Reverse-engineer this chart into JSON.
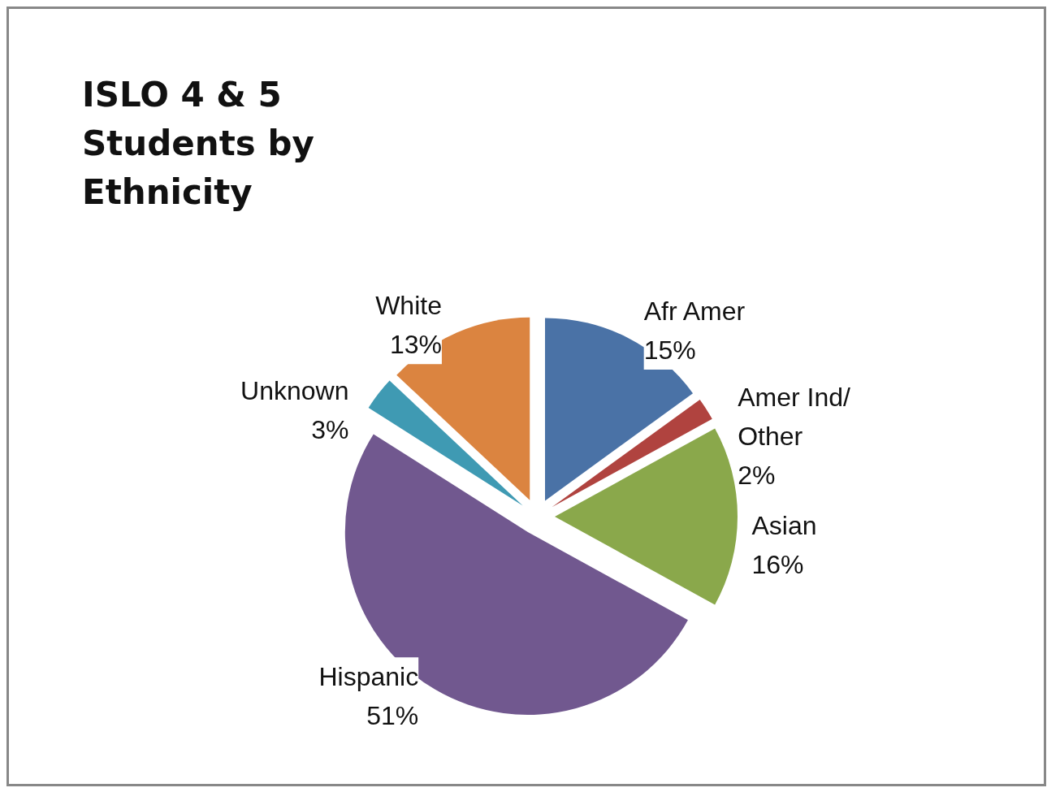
{
  "chart_data": {
    "type": "pie",
    "title": "ISLO 4 & 5 Students by Ethnicity",
    "categories": [
      "Afr Amer",
      "Amer Ind/Other",
      "Asian",
      "Hispanic",
      "Unknown",
      "White"
    ],
    "values": [
      15,
      2,
      16,
      51,
      3,
      13
    ],
    "colors": [
      "#4a72a6",
      "#b0433f",
      "#8aa84b",
      "#71588f",
      "#3f9ab3",
      "#db8440"
    ],
    "value_labels": [
      "15%",
      "2%",
      "16%",
      "51%",
      "3%",
      "13%"
    ],
    "legend": false
  }
}
